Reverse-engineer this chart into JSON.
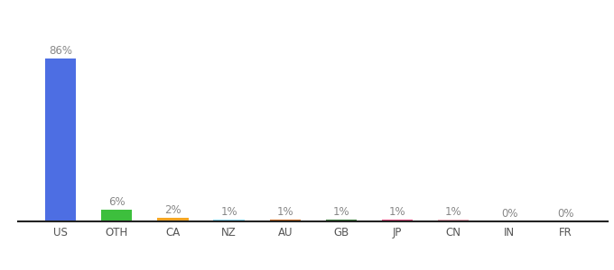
{
  "categories": [
    "US",
    "OTH",
    "CA",
    "NZ",
    "AU",
    "GB",
    "JP",
    "CN",
    "IN",
    "FR"
  ],
  "values": [
    86,
    6,
    2,
    1,
    1,
    1,
    1,
    1,
    0,
    0
  ],
  "label_values": [
    "86%",
    "6%",
    "2%",
    "1%",
    "1%",
    "1%",
    "1%",
    "1%",
    "0%",
    "0%"
  ],
  "colors": [
    "#4d6ee3",
    "#3dbf3d",
    "#f5a623",
    "#82d4f5",
    "#c8651b",
    "#3a7a3a",
    "#e0457b",
    "#e8a0b0",
    "#cccccc",
    "#cccccc"
  ],
  "background_color": "#ffffff",
  "ylim": [
    0,
    100
  ],
  "bar_width": 0.55,
  "label_fontsize": 8.5,
  "tick_fontsize": 8.5,
  "label_color": "#888888",
  "tick_color": "#555555"
}
